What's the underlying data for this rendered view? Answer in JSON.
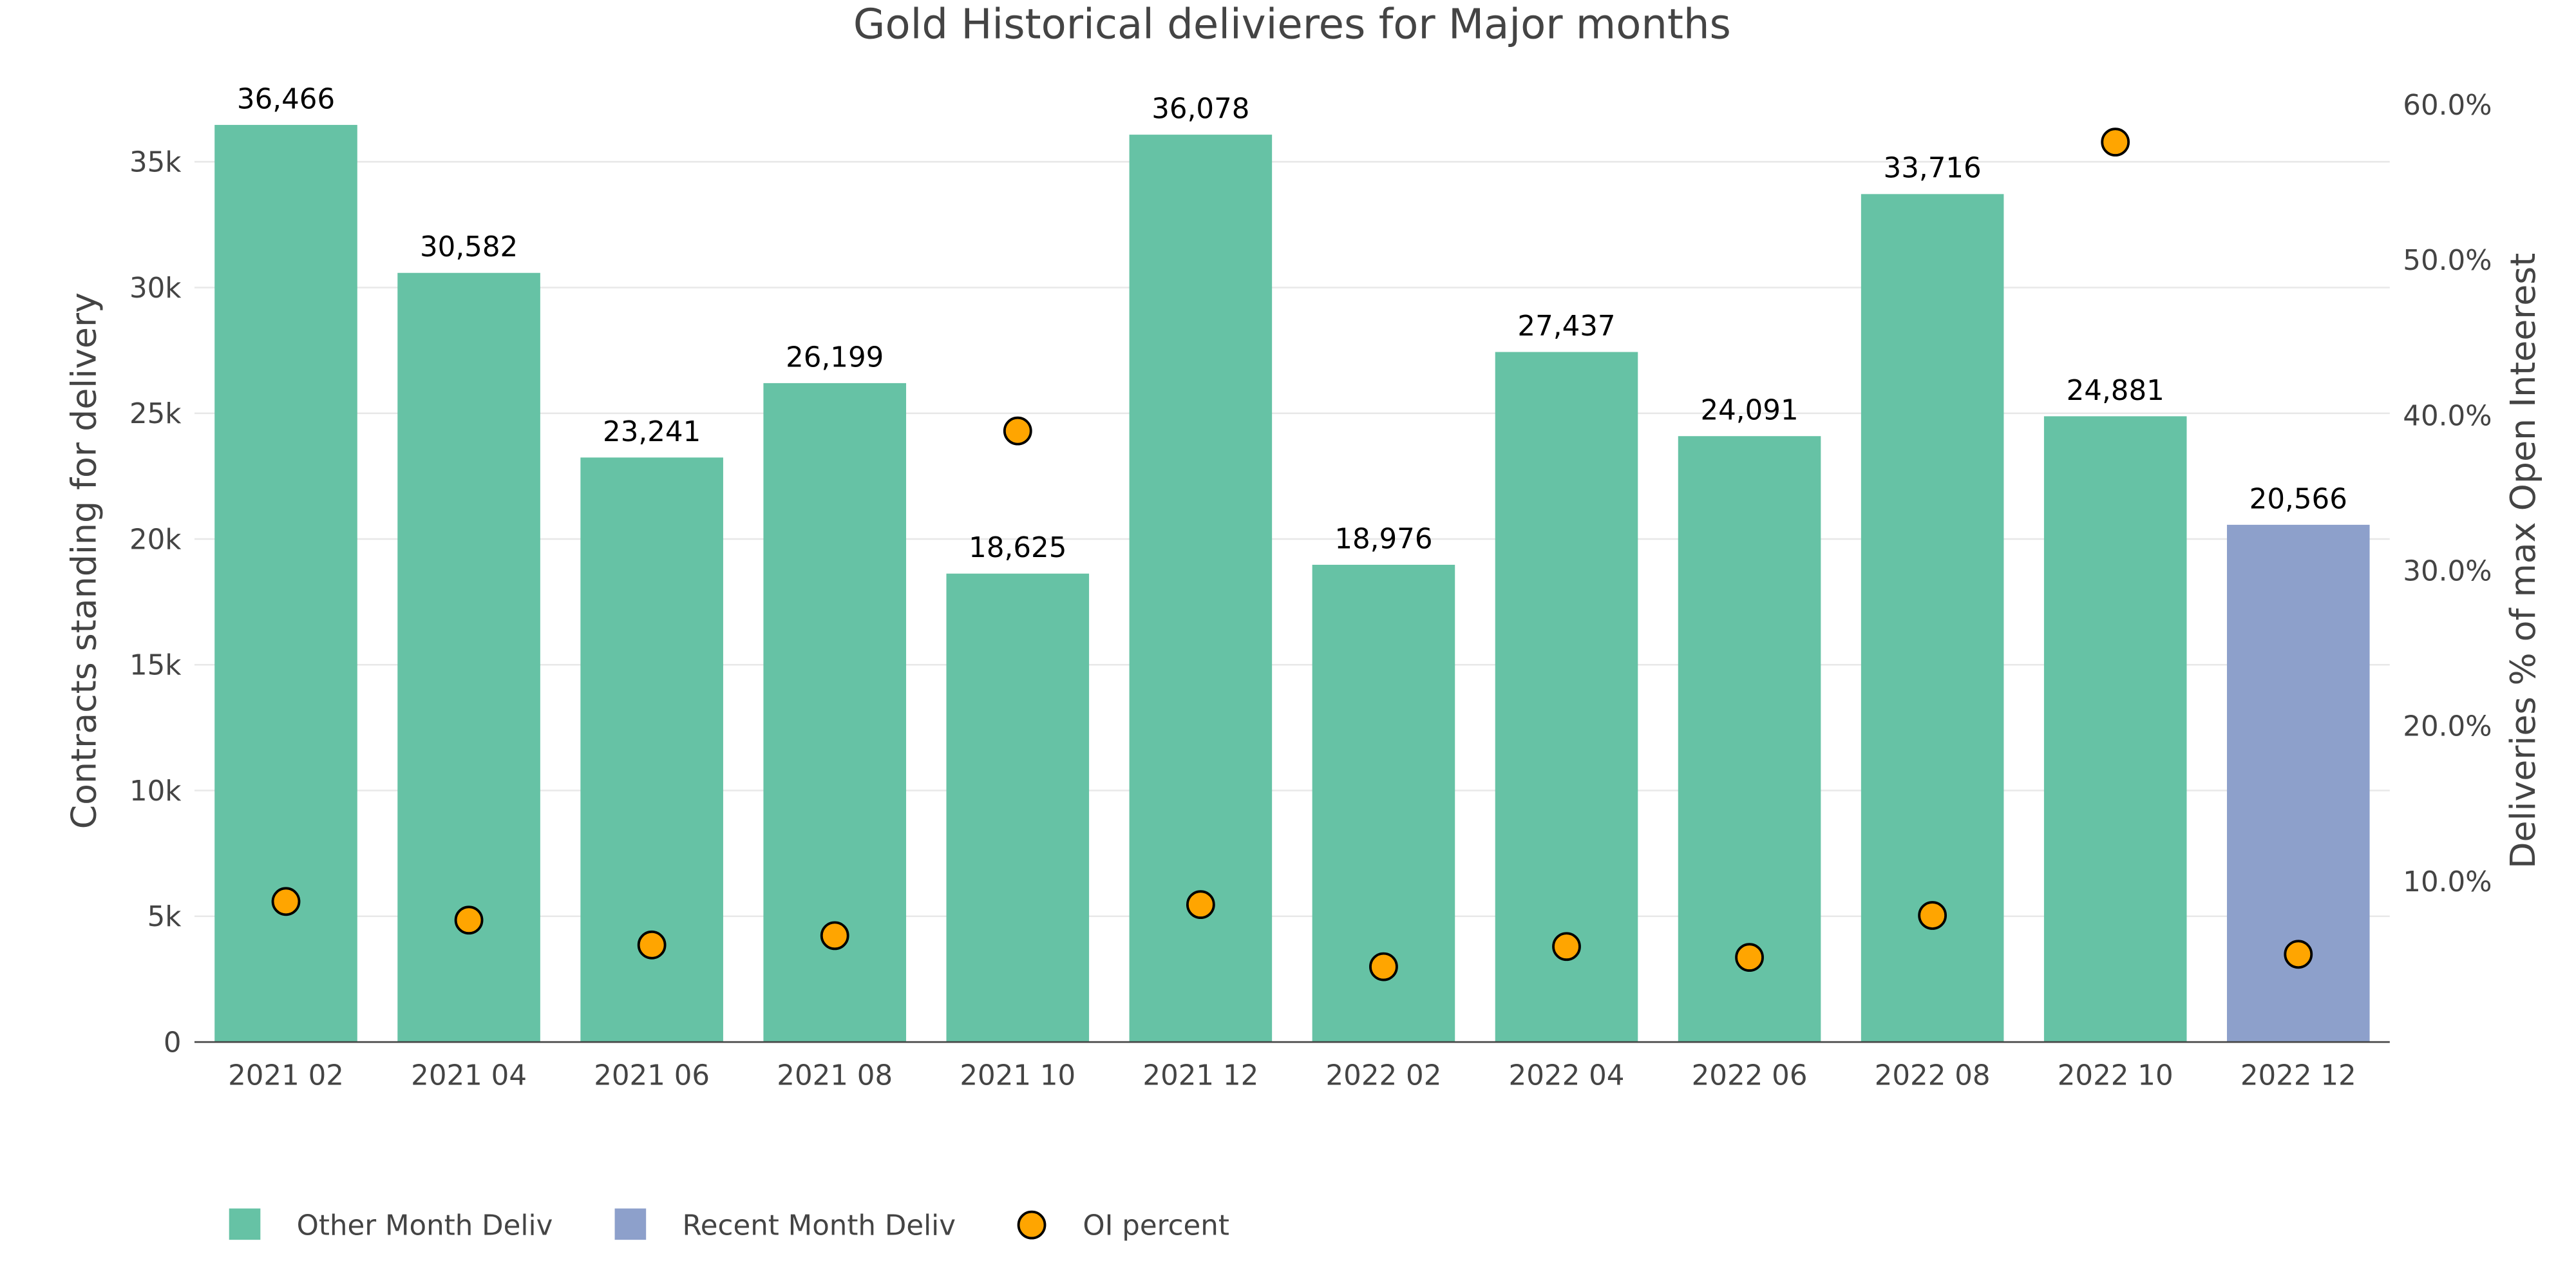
{
  "chart_data": {
    "type": "bar",
    "title": "Gold Historical delivieres for Major months",
    "ylabel": "Contracts standing for delivery",
    "y2label": "Deliveries % of max Open Inteerest",
    "categories": [
      "2021 02",
      "2021 04",
      "2021 06",
      "2021 08",
      "2021 10",
      "2021 12",
      "2022 02",
      "2022 04",
      "2022 06",
      "2022 08",
      "2022 10",
      "2022 12"
    ],
    "series": [
      {
        "name": "Other Month Deliv",
        "type": "bar",
        "color": "#66c2a5",
        "values": [
          36466,
          30582,
          23241,
          26199,
          18625,
          36078,
          18976,
          27437,
          24091,
          33716,
          24881,
          null
        ],
        "labels": [
          "36,466",
          "30,582",
          "23,241",
          "26,199",
          "18,625",
          "36,078",
          "18,976",
          "27,437",
          "24,091",
          "33,716",
          "24,881",
          null
        ]
      },
      {
        "name": "Recent Month Deliv",
        "type": "bar",
        "color": "#8da0cb",
        "values": [
          null,
          null,
          null,
          null,
          null,
          null,
          null,
          null,
          null,
          null,
          null,
          20566
        ],
        "labels": [
          null,
          null,
          null,
          null,
          null,
          null,
          null,
          null,
          null,
          null,
          null,
          "20,566"
        ]
      },
      {
        "name": "OI percent",
        "type": "scatter",
        "axis": "y2",
        "color": "#ffa500",
        "values": [
          8.7,
          7.5,
          5.9,
          6.5,
          39.0,
          8.5,
          4.5,
          5.8,
          5.1,
          7.8,
          57.6,
          5.3
        ]
      }
    ],
    "yticks": [
      0,
      5000,
      10000,
      15000,
      20000,
      25000,
      30000,
      35000
    ],
    "ytick_labels": [
      "0",
      "5k",
      "10k",
      "15k",
      "20k",
      "25k",
      "30k",
      "35k"
    ],
    "ylim": [
      0,
      38500
    ],
    "y2ticks": [
      10,
      20,
      30,
      40,
      50,
      60
    ],
    "y2tick_labels": [
      "10.0%",
      "20.0%",
      "30.0%",
      "40.0%",
      "50.0%",
      "60.0%"
    ],
    "y2lim": [
      -0.35,
      62
    ],
    "grid": true,
    "legend_position": "bottom-left"
  }
}
